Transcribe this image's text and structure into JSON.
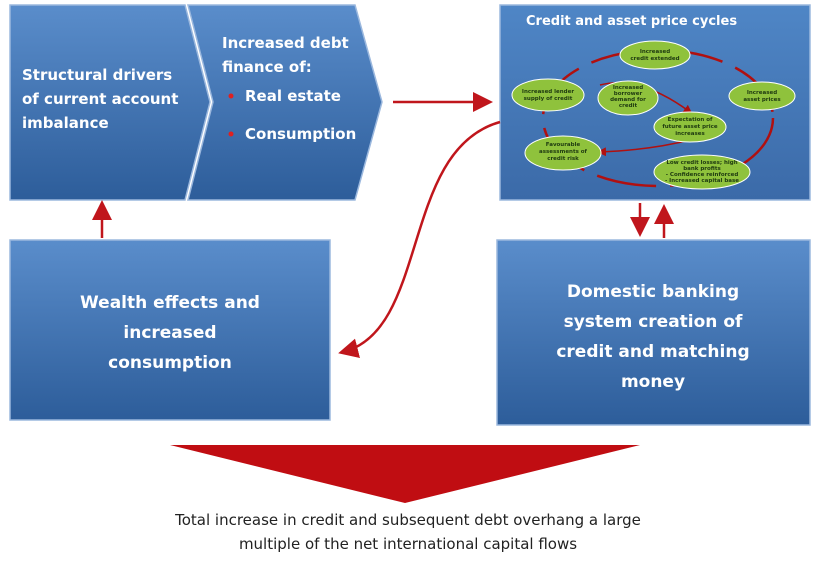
{
  "structural": {
    "lines": [
      "Structural drivers",
      "of current account",
      "imbalance"
    ]
  },
  "debt": {
    "lines": [
      "Increased debt",
      "finance of:"
    ],
    "bullets": [
      "Real estate",
      "Consumption"
    ]
  },
  "cycle": {
    "title": "Credit and  asset price cycles",
    "nodes": [
      {
        "lines": [
          "Increased",
          "credit extended"
        ]
      },
      {
        "lines": [
          "Increased",
          "asset prices"
        ]
      },
      {
        "lines": [
          "Low credit losses; high",
          "bank profits",
          "- Confidence reinforced",
          "- Increased capital base"
        ]
      },
      {
        "lines": [
          "Favourable",
          "assessments of",
          "credit risk"
        ]
      },
      {
        "lines": [
          "Increased lender",
          "supply of credit"
        ]
      },
      {
        "lines": [
          "Increased",
          "borrower",
          "demand for",
          "credit"
        ]
      },
      {
        "lines": [
          "Expectation of",
          "future asset price",
          "increases"
        ]
      }
    ]
  },
  "wealth": {
    "lines": [
      "Wealth effects and",
      "increased",
      "consumption"
    ]
  },
  "banking": {
    "lines": [
      "Domestic banking",
      "system creation of",
      "credit and matching",
      "money"
    ]
  },
  "footer": {
    "lines": [
      "Total increase in credit and subsequent debt overhang a large",
      "multiple of the net international capital flows"
    ]
  }
}
